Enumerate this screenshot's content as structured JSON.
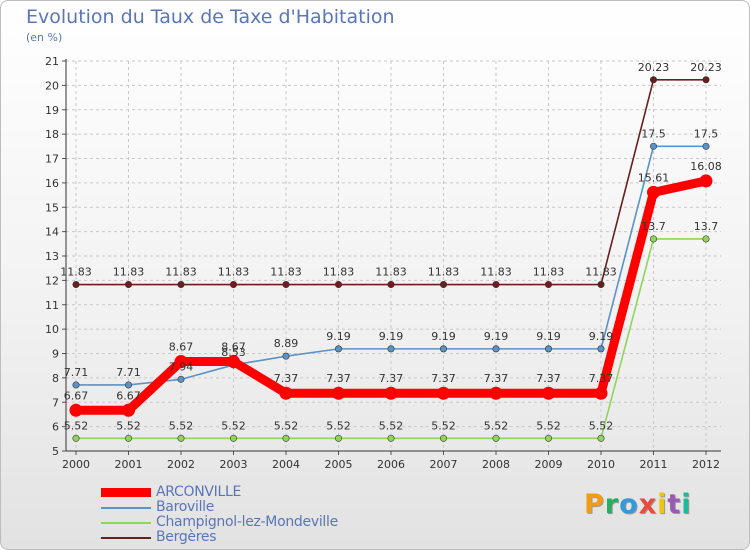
{
  "header": {
    "title": "Evolution du Taux de Taxe d'Habitation",
    "subtitle": "(en %)"
  },
  "logo": {
    "text": "Proxiti",
    "colors": [
      "#f39c12",
      "#27ae60",
      "#3498db",
      "#e74c3c",
      "#f1c40f",
      "#9b59b6",
      "#1abc9c"
    ]
  },
  "chart_data": {
    "type": "line",
    "title": "Evolution du Taux de Taxe d'Habitation",
    "ylabel": "(en %)",
    "xlabel": "",
    "categories": [
      "2000",
      "2001",
      "2002",
      "2003",
      "2004",
      "2005",
      "2006",
      "2007",
      "2008",
      "2009",
      "2010",
      "2011",
      "2012"
    ],
    "ylim": [
      5,
      21
    ],
    "yticks": [
      5,
      6,
      7,
      8,
      9,
      10,
      11,
      12,
      13,
      14,
      15,
      16,
      17,
      18,
      19,
      20,
      21
    ],
    "grid": true,
    "legend_position": "bottom-left",
    "series": [
      {
        "name": "Bergères",
        "color": "#6b1e1e",
        "emphasis": false,
        "values": [
          11.83,
          11.83,
          11.83,
          11.83,
          11.83,
          11.83,
          11.83,
          11.83,
          11.83,
          11.83,
          11.83,
          20.23,
          20.23
        ],
        "labels": [
          "11.83",
          "11.83",
          "11.83",
          "11.83",
          "11.83",
          "11.83",
          "11.83",
          "11.83",
          "11.83",
          "11.83",
          "11.83",
          "20.23",
          "20.23"
        ]
      },
      {
        "name": "Baroville",
        "color": "#5b93c6",
        "emphasis": false,
        "values": [
          7.71,
          7.71,
          7.94,
          8.53,
          8.89,
          9.19,
          9.19,
          9.19,
          9.19,
          9.19,
          9.19,
          17.5,
          17.5
        ],
        "labels": [
          "7.71",
          "7.71",
          "7.94",
          "8.53",
          "8.89",
          "9.19",
          "9.19",
          "9.19",
          "9.19",
          "9.19",
          "9.19",
          "17.5",
          "17.5"
        ]
      },
      {
        "name": "Champignol-lez-Mondeville",
        "color": "#8fd45c",
        "emphasis": false,
        "values": [
          5.52,
          5.52,
          5.52,
          5.52,
          5.52,
          5.52,
          5.52,
          5.52,
          5.52,
          5.52,
          5.52,
          13.7,
          13.7
        ],
        "labels": [
          "5.52",
          "5.52",
          "5.52",
          "5.52",
          "5.52",
          "5.52",
          "5.52",
          "5.52",
          "5.52",
          "5.52",
          "5.52",
          "13.7",
          "13.7"
        ]
      },
      {
        "name": "ARCONVILLE",
        "color": "#ff0000",
        "emphasis": true,
        "values": [
          6.67,
          6.67,
          8.67,
          8.67,
          7.37,
          7.37,
          7.37,
          7.37,
          7.37,
          7.37,
          7.37,
          15.61,
          16.08
        ],
        "labels": [
          "6.67",
          "6.67",
          "8.67",
          "8.67",
          "7.37",
          "7.37",
          "7.37",
          "7.37",
          "7.37",
          "7.37",
          "7.37",
          "15.61",
          "16.08"
        ]
      }
    ],
    "legend_order": [
      "ARCONVILLE",
      "Baroville",
      "Champignol-lez-Mondeville",
      "Bergères"
    ]
  }
}
